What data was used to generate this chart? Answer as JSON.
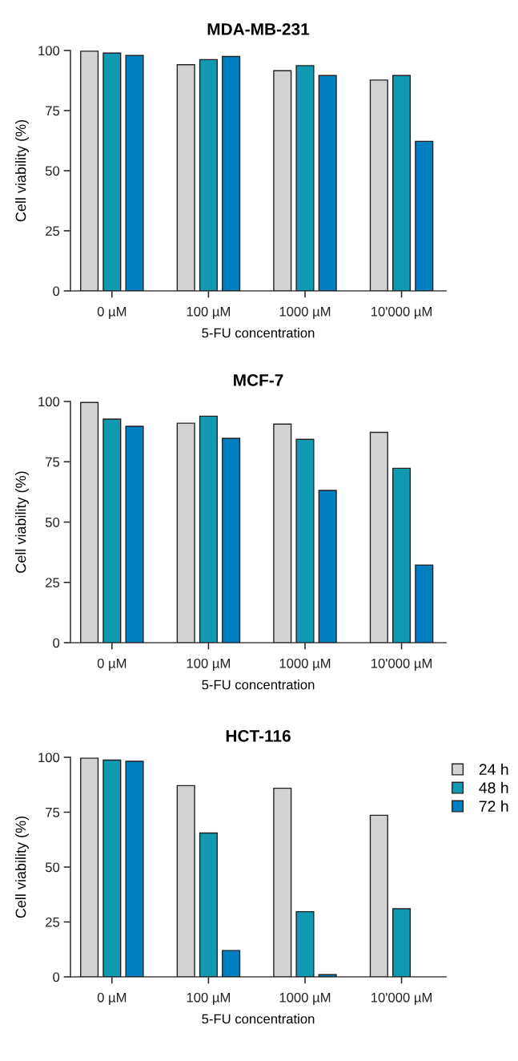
{
  "chart_data": [
    {
      "type": "bar",
      "title": "MDA-MB-231",
      "xlabel": "5-FU concentration",
      "ylabel": "Cell viability (%)",
      "categories": [
        "0 µM",
        "100 µM",
        "1000 µM",
        "10'000 µM"
      ],
      "ylim": [
        0,
        100
      ],
      "yticks": [
        0,
        25,
        50,
        75,
        100
      ],
      "grid": false,
      "legend": false,
      "series": [
        {
          "color": "#d3d3d3",
          "values": [
            99.7,
            94.1,
            91.6,
            87.7
          ]
        },
        {
          "color": "#1199b2",
          "values": [
            98.9,
            96.2,
            93.7,
            89.6
          ]
        },
        {
          "color": "#0080c0",
          "values": [
            97.9,
            97.5,
            89.6,
            62.2
          ]
        }
      ]
    },
    {
      "type": "bar",
      "title": "MCF-7",
      "xlabel": "5-FU concentration",
      "ylabel": "Cell viability (%)",
      "categories": [
        "0 µM",
        "100 µM",
        "1000 µM",
        "10'000 µM"
      ],
      "ylim": [
        0,
        100
      ],
      "yticks": [
        0,
        25,
        50,
        75,
        100
      ],
      "grid": false,
      "legend": false,
      "series": [
        {
          "color": "#d3d3d3",
          "values": [
            99.6,
            91.0,
            90.6,
            87.2
          ]
        },
        {
          "color": "#1199b2",
          "values": [
            92.7,
            93.9,
            84.3,
            72.3
          ]
        },
        {
          "color": "#0080c0",
          "values": [
            89.7,
            84.7,
            63.1,
            32.2
          ]
        }
      ]
    },
    {
      "type": "bar",
      "title": "HCT-116",
      "xlabel": "5-FU concentration",
      "ylabel": "Cell viability (%)",
      "categories": [
        "0 µM",
        "100 µM",
        "1000 µM",
        "10'000 µM"
      ],
      "ylim": [
        0,
        100
      ],
      "yticks": [
        0,
        25,
        50,
        75,
        100
      ],
      "grid": false,
      "legend": "top right",
      "series": [
        {
          "name": "24 h",
          "color": "#d3d3d3",
          "values": [
            99.6,
            87.1,
            85.9,
            73.6
          ]
        },
        {
          "name": "48 h",
          "color": "#1199b2",
          "values": [
            98.7,
            65.5,
            29.7,
            31.0
          ]
        },
        {
          "name": "72 h",
          "color": "#0080c0",
          "values": [
            98.2,
            12.0,
            1.0,
            null
          ]
        }
      ]
    }
  ]
}
